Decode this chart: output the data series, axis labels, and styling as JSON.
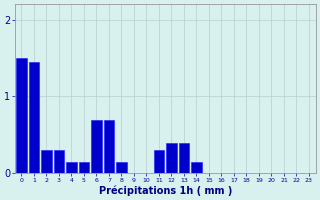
{
  "values": [
    1.5,
    1.45,
    0.3,
    0.3,
    0.15,
    0.15,
    0.7,
    0.7,
    0.15,
    0.0,
    0.0,
    0.3,
    0.4,
    0.4,
    0.15,
    0.0,
    0.0,
    0.0,
    0.0,
    0.0,
    0.0,
    0.0,
    0.0,
    0.0
  ],
  "bar_color": "#0000cc",
  "bar_edge_color": "#1a1aff",
  "background_color": "#d8f0ee",
  "grid_color": "#b8cece",
  "xlabel": "Précipitations 1h ( mm )",
  "xlabel_fontsize": 7,
  "ylim": [
    0,
    2.2
  ],
  "yticks": [
    0,
    1,
    2
  ],
  "num_bars": 24,
  "title_color": "#000080",
  "tick_color": "#000099",
  "axis_color": "#888888"
}
